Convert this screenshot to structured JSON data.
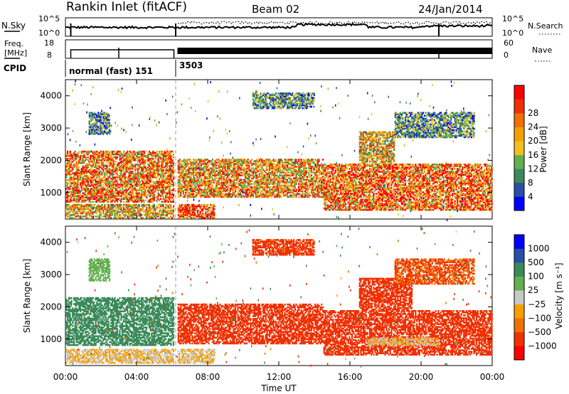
{
  "header": {
    "station": "Rankin Inlet (fitACF)",
    "beam": "Beam 02",
    "date": "24/Jan/2014"
  },
  "noise_panel": {
    "left_label": "N.Sky",
    "left_ticks": [
      "10^5",
      "10^0"
    ],
    "right_label": "N.Search",
    "right_ticks": [
      "10^5",
      "10^0"
    ]
  },
  "freq_panel": {
    "left_label_1": "Freq.",
    "left_label_2": "[MHz]",
    "left_ticks": [
      "18",
      "8"
    ],
    "right_label": "Nave",
    "right_ticks": [
      "60",
      "0"
    ]
  },
  "cpid_panel": {
    "label": "CPID",
    "segments": [
      {
        "label": "normal (fast) 151",
        "start_hour": 0.0,
        "end_hour": 6.2
      },
      {
        "label": "3503",
        "start_hour": 6.2,
        "end_hour": 24.0
      }
    ]
  },
  "colors": {
    "power_scale": [
      "#0000ff",
      "#2a4fa8",
      "#3a8a5a",
      "#62b04e",
      "#f0c020",
      "#f5a000",
      "#f07000",
      "#f03000",
      "#ff0000"
    ],
    "velocity_scale": [
      "#ff0000",
      "#f03000",
      "#f07000",
      "#f5a000",
      "#c8c8c8",
      "#62b04e",
      "#3a8a5a",
      "#2a4fa8",
      "#0000ff"
    ]
  },
  "chart_data": [
    {
      "type": "heatmap",
      "name": "power",
      "ylabel": "Slant Range [km]",
      "yticks": [
        "1000",
        "2000",
        "3000",
        "4000"
      ],
      "ylim": [
        180,
        4500
      ],
      "xlim": [
        0,
        24
      ],
      "colorbar": {
        "label": "Power [dB]",
        "ticks": [
          "4",
          "8",
          "12",
          "16",
          "20",
          "24",
          "28"
        ],
        "range": [
          0,
          32
        ]
      },
      "echo_regions": [
        {
          "t0": 0.0,
          "t1": 6.1,
          "r0": 700,
          "r1": 2300,
          "value": 22
        },
        {
          "t0": 0.0,
          "t1": 6.1,
          "r0": 200,
          "r1": 650,
          "value": 18
        },
        {
          "t0": 1.3,
          "t1": 2.5,
          "r0": 2800,
          "r1": 3500,
          "value": 9
        },
        {
          "t0": 6.3,
          "t1": 14.5,
          "r0": 850,
          "r1": 2050,
          "value": 20
        },
        {
          "t0": 6.3,
          "t1": 8.4,
          "r0": 200,
          "r1": 650,
          "value": 26
        },
        {
          "t0": 10.5,
          "t1": 14.0,
          "r0": 3600,
          "r1": 4100,
          "value": 10
        },
        {
          "t0": 14.5,
          "t1": 24.0,
          "r0": 450,
          "r1": 1900,
          "value": 24
        },
        {
          "t0": 16.5,
          "t1": 18.5,
          "r0": 1900,
          "r1": 2900,
          "value": 18
        },
        {
          "t0": 18.5,
          "t1": 23.0,
          "r0": 2700,
          "r1": 3500,
          "value": 10
        }
      ]
    },
    {
      "type": "heatmap",
      "name": "velocity",
      "ylabel": "Slant Range [km]",
      "yticks": [
        "1000",
        "2000",
        "3000",
        "4000"
      ],
      "ylim": [
        180,
        4500
      ],
      "xlim": [
        0,
        24
      ],
      "colorbar": {
        "label": "Velocity [m s⁻¹]",
        "ticks": [
          "1000",
          "500",
          "100",
          "25",
          "−25",
          "−100",
          "−500",
          "−1000"
        ]
      },
      "echo_regions": [
        {
          "t0": 0.0,
          "t1": 6.1,
          "r0": 800,
          "r1": 2300,
          "value": 300
        },
        {
          "t0": 0.0,
          "t1": 6.1,
          "r0": 250,
          "r1": 700,
          "value": 0
        },
        {
          "t0": 1.3,
          "t1": 2.5,
          "r0": 2800,
          "r1": 3500,
          "value": 50
        },
        {
          "t0": 6.3,
          "t1": 14.5,
          "r0": 850,
          "r1": 2100,
          "value": -300
        },
        {
          "t0": 6.3,
          "t1": 8.4,
          "r0": 250,
          "r1": 700,
          "value": 0
        },
        {
          "t0": 10.5,
          "t1": 14.0,
          "r0": 3600,
          "r1": 4100,
          "value": -150
        },
        {
          "t0": 14.5,
          "t1": 24.0,
          "r0": 500,
          "r1": 1900,
          "value": -350
        },
        {
          "t0": 17.0,
          "t1": 21.0,
          "r0": 800,
          "r1": 1050,
          "value": 0
        },
        {
          "t0": 16.5,
          "t1": 19.5,
          "r0": 1900,
          "r1": 2900,
          "value": -200
        },
        {
          "t0": 18.5,
          "t1": 23.0,
          "r0": 2700,
          "r1": 3500,
          "value": -100
        }
      ]
    }
  ],
  "x_axis": {
    "ticks": [
      "00:00",
      "04:00",
      "08:00",
      "12:00",
      "16:00",
      "20:00",
      "00:00"
    ],
    "tick_hours": [
      0,
      4,
      8,
      12,
      16,
      20,
      24
    ],
    "label": "Time UT"
  }
}
